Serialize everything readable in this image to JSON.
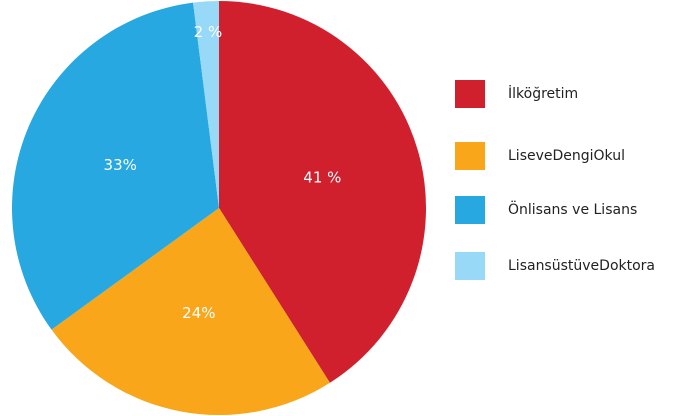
{
  "chart_data": {
    "type": "pie",
    "categories": [
      "İlköğretim",
      "LiseveDengiOkul",
      "Önlisans ve Lisans",
      "LisansüstüveDoktora"
    ],
    "values": [
      41,
      24,
      33,
      2
    ],
    "value_labels": [
      "41 %",
      "24%",
      "33%",
      "2 %"
    ],
    "colors": [
      "#d0202e",
      "#f9a61b",
      "#27a8e0",
      "#97d9f6"
    ],
    "legend": "right"
  }
}
